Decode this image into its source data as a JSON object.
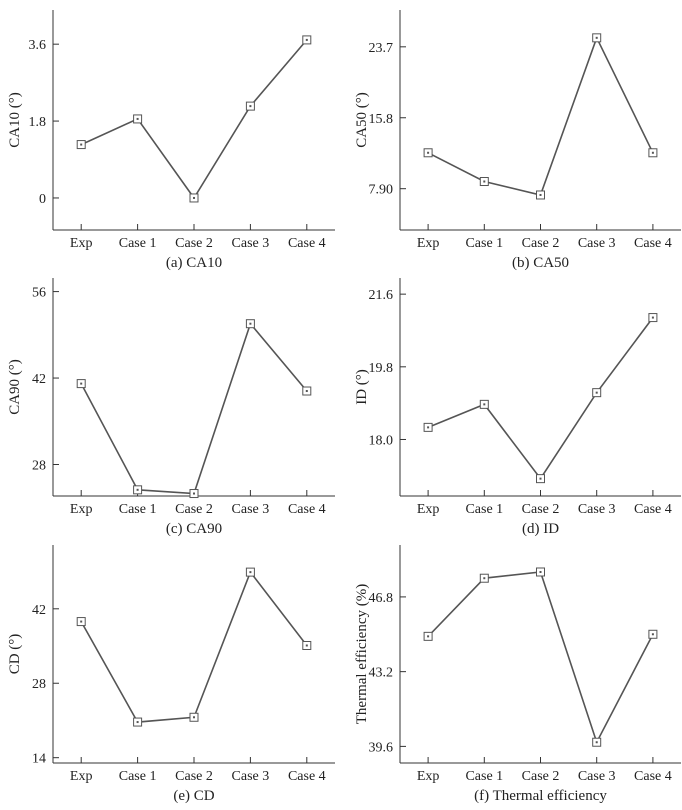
{
  "chart_data": [
    {
      "type": "line",
      "caption": "(a) CA10",
      "ylabel": "CA10 (°)",
      "categories": [
        "Exp",
        "Case 1",
        "Case 2",
        "Case 3",
        "Case 4"
      ],
      "values": [
        1.25,
        1.85,
        0.0,
        2.15,
        3.7
      ],
      "yticks": [
        "0",
        "1.8",
        "3.6"
      ],
      "ytick_values": [
        0,
        1.8,
        3.6
      ],
      "ylim": [
        -0.75,
        4.4
      ]
    },
    {
      "type": "line",
      "caption": "(b) CA50",
      "ylabel": "CA50 (°)",
      "categories": [
        "Exp",
        "Case 1",
        "Case 2",
        "Case 3",
        "Case 4"
      ],
      "values": [
        11.9,
        8.7,
        7.2,
        24.7,
        11.9
      ],
      "yticks": [
        "7.90",
        "15.8",
        "23.7"
      ],
      "ytick_values": [
        7.9,
        15.8,
        23.7
      ],
      "ylim": [
        3.3,
        27.8
      ]
    },
    {
      "type": "line",
      "caption": "(c) CA90",
      "ylabel": "CA90 (°)",
      "categories": [
        "Exp",
        "Case 1",
        "Case 2",
        "Case 3",
        "Case 4"
      ],
      "values": [
        41.1,
        23.9,
        23.3,
        50.8,
        39.9
      ],
      "yticks": [
        "28",
        "42",
        "56"
      ],
      "ytick_values": [
        28,
        42,
        56
      ],
      "ylim": [
        22.9,
        58.2
      ]
    },
    {
      "type": "line",
      "caption": "(d) ID",
      "ylabel": "ID (°)",
      "categories": [
        "Exp",
        "Case 1",
        "Case 2",
        "Case 3",
        "Case 4"
      ],
      "values": [
        18.3,
        18.87,
        17.03,
        19.16,
        21.02
      ],
      "yticks": [
        "18.0",
        "19.8",
        "21.6"
      ],
      "ytick_values": [
        18.0,
        19.8,
        21.6
      ],
      "ylim": [
        16.6,
        22.0
      ]
    },
    {
      "type": "line",
      "caption": "(e) CD",
      "ylabel": "CD (°)",
      "categories": [
        "Exp",
        "Case 1",
        "Case 2",
        "Case 3",
        "Case 4"
      ],
      "values": [
        39.6,
        20.7,
        21.6,
        48.9,
        35.1
      ],
      "yticks": [
        "14",
        "28",
        "42"
      ],
      "ytick_values": [
        14,
        28,
        42
      ],
      "ylim": [
        13.0,
        54.0
      ]
    },
    {
      "type": "line",
      "caption": "(f) Thermal efficiency",
      "ylabel": "Thermal efficiency (%)",
      "categories": [
        "Exp",
        "Case 1",
        "Case 2",
        "Case 3",
        "Case 4"
      ],
      "values": [
        44.9,
        47.7,
        48.0,
        39.8,
        45.0
      ],
      "yticks": [
        "39.6",
        "43.2",
        "46.8"
      ],
      "ytick_values": [
        39.6,
        43.2,
        46.8
      ],
      "ylim": [
        38.8,
        49.3
      ]
    }
  ]
}
